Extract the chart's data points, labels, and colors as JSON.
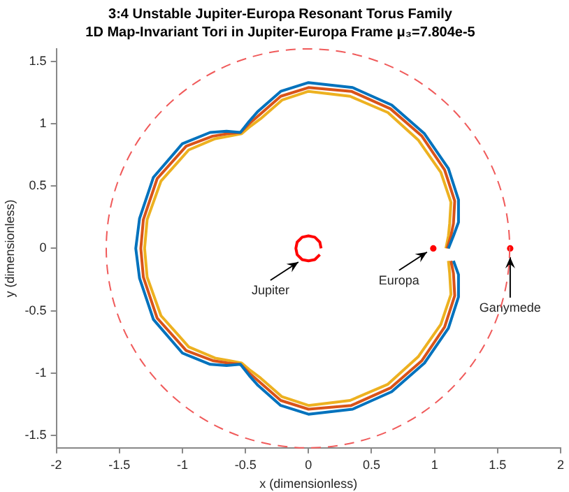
{
  "chart_data": {
    "type": "line",
    "title": "3:4 Unstable Jupiter-Europa Resonant Torus Family",
    "subtitle": "1D Map-Invariant Tori in Jupiter-Europa Frame μ₃=7.804e-5",
    "xlabel": "x (dimensionless)",
    "ylabel": "y (dimensionless)",
    "xlim": [
      -2,
      2
    ],
    "ylim": [
      -1.6,
      1.6
    ],
    "xticks": [
      -2,
      -1.5,
      -1,
      -0.5,
      0,
      0.5,
      1,
      1.5,
      2
    ],
    "yticks": [
      -1.5,
      -1,
      -0.5,
      0,
      0.5,
      1,
      1.5
    ],
    "grid": false,
    "legend": false,
    "marker": "none",
    "series": [
      {
        "color": "#0072bd",
        "x": [
          1.11,
          1.15,
          1.19,
          1.19,
          1.11,
          0.92,
          0.66,
          0.35,
          0,
          -0.22,
          -0.4,
          -0.47,
          -0.54,
          -0.65,
          -0.78,
          -1.0,
          -1.23,
          -1.34,
          -1.37,
          -1.34,
          -1.23,
          -1.0,
          -0.78,
          -0.65,
          -0.54,
          -0.47,
          -0.4,
          -0.22,
          0,
          0.35,
          0.66,
          0.92,
          1.11,
          1.19,
          1.19,
          1.15
        ],
        "values": [
          0,
          0.1,
          0.21,
          0.39,
          0.64,
          0.92,
          1.15,
          1.29,
          1.33,
          1.26,
          1.1,
          1.02,
          0.93,
          0.94,
          0.93,
          0.84,
          0.57,
          0.24,
          0,
          -0.24,
          -0.57,
          -0.84,
          -0.93,
          -0.94,
          -0.93,
          -1.02,
          -1.1,
          -1.26,
          -1.33,
          -1.29,
          -1.15,
          -0.92,
          -0.64,
          -0.39,
          -0.21,
          -0.1
        ]
      },
      {
        "color": "#d95319",
        "x": [
          1.1,
          1.13,
          1.15,
          1.16,
          1.08,
          0.9,
          0.65,
          0.34,
          0,
          -0.22,
          -0.39,
          -0.47,
          -0.54,
          -0.64,
          -0.76,
          -0.97,
          -1.2,
          -1.31,
          -1.33,
          -1.31,
          -1.2,
          -0.97,
          -0.76,
          -0.64,
          -0.54,
          -0.47,
          -0.39,
          -0.22,
          0,
          0.34,
          0.65,
          0.9,
          1.08,
          1.16,
          1.15,
          1.13
        ],
        "values": [
          0,
          0.1,
          0.2,
          0.38,
          0.63,
          0.9,
          1.12,
          1.26,
          1.29,
          1.22,
          1.07,
          1.0,
          0.93,
          0.92,
          0.9,
          0.82,
          0.56,
          0.23,
          0,
          -0.23,
          -0.56,
          -0.82,
          -0.9,
          -0.92,
          -0.93,
          -1.0,
          -1.07,
          -1.22,
          -1.29,
          -1.26,
          -1.12,
          -0.9,
          -0.63,
          -0.38,
          -0.2,
          -0.1
        ]
      },
      {
        "color": "#edb120",
        "x": [
          1.09,
          1.11,
          1.12,
          1.13,
          1.05,
          0.87,
          0.63,
          0.33,
          0,
          -0.21,
          -0.38,
          -0.46,
          -0.53,
          -0.63,
          -0.74,
          -0.95,
          -1.17,
          -1.28,
          -1.3,
          -1.28,
          -1.17,
          -0.95,
          -0.74,
          -0.63,
          -0.53,
          -0.46,
          -0.38,
          -0.21,
          0,
          0.33,
          0.63,
          0.87,
          1.05,
          1.13,
          1.12,
          1.11
        ],
        "values": [
          0,
          0.1,
          0.2,
          0.37,
          0.61,
          0.87,
          1.09,
          1.22,
          1.26,
          1.19,
          1.04,
          0.98,
          0.92,
          0.9,
          0.88,
          0.79,
          0.54,
          0.23,
          0,
          -0.23,
          -0.54,
          -0.79,
          -0.88,
          -0.9,
          -0.92,
          -0.98,
          -1.04,
          -1.19,
          -1.26,
          -1.22,
          -1.09,
          -0.87,
          -0.61,
          -0.37,
          -0.2,
          -0.1
        ]
      },
      {
        "color": "#ff0000",
        "x": [
          0.1,
          0.09,
          0.05,
          0,
          -0.05,
          -0.09,
          -0.1,
          -0.09,
          -0.05,
          0,
          0.05,
          0.09
        ],
        "values": [
          0,
          0.05,
          0.09,
          0.1,
          0.09,
          0.05,
          0,
          -0.05,
          -0.09,
          -0.1,
          -0.09,
          -0.05
        ]
      },
      {
        "type": "scatter",
        "color": "#ff0000",
        "marker": "circle",
        "x": [
          0.99,
          1.6
        ],
        "values": [
          0,
          0
        ]
      }
    ],
    "annotations": [
      {
        "text": "Jupiter",
        "x": -0.08,
        "y": -0.11
      },
      {
        "text": "Europa",
        "x": 0.94,
        "y": -0.03
      },
      {
        "text": "Ganymede",
        "x": 1.6,
        "y": -0.07
      }
    ]
  }
}
